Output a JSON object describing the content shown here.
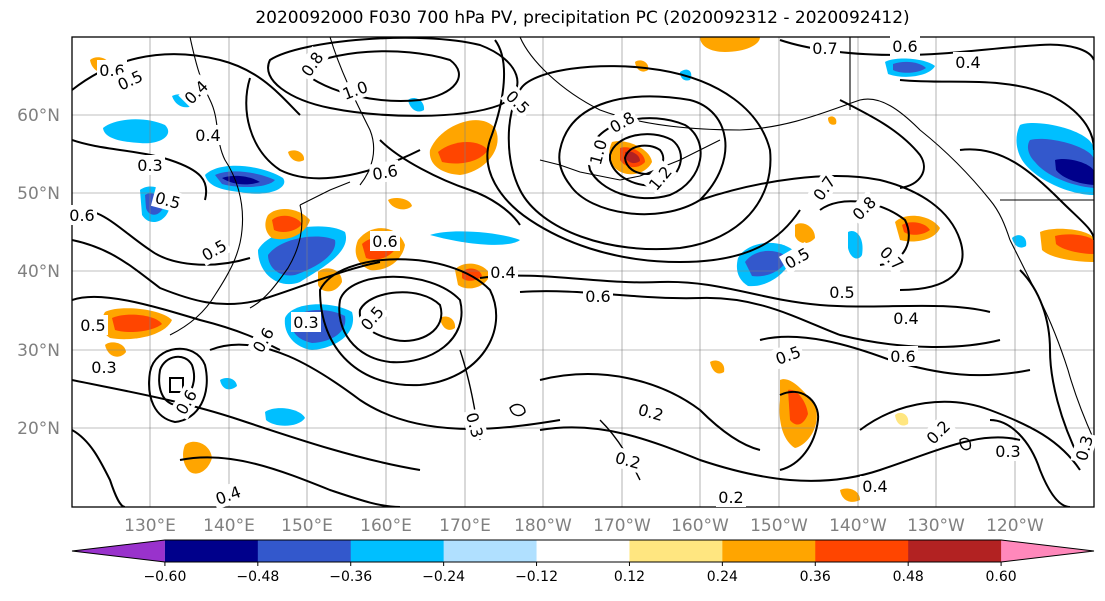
{
  "title": "2020092000 F030 700 hPa PV, precipitation PC (2020092312 - 2020092412)",
  "map": {
    "lat_labels": [
      "60°N",
      "50°N",
      "40°N",
      "30°N",
      "20°N"
    ],
    "lon_labels": [
      "130°E",
      "140°E",
      "150°E",
      "160°E",
      "170°E",
      "180°W",
      "170°W",
      "160°W",
      "150°W",
      "140°W",
      "130°W",
      "120°W"
    ],
    "contour_labels": [
      "0.6",
      "0.5",
      "0.4",
      "0.8",
      "1.0",
      "0.5",
      "0.8",
      "1.0",
      "1.2",
      "0.7",
      "0.6",
      "0.4",
      "0.3",
      "0.4",
      "0.6",
      "0.5",
      "0.6",
      "0.5",
      "0.6",
      "0.4",
      "0.7",
      "0.8",
      "0.5",
      "0.3",
      "0.5",
      "0.6",
      "0.5",
      "0.4",
      "0.6",
      "0.5",
      "0.3",
      "0.3",
      "0.2",
      "0.2",
      "0.2",
      "0.4",
      "0.3",
      "0.2",
      "0.4",
      "0.3",
      "0.6",
      "0.6",
      "0.7",
      "0.5"
    ]
  },
  "colorbar": {
    "tick_labels": [
      "−0.60",
      "−0.48",
      "−0.36",
      "−0.24",
      "−0.12",
      "0.12",
      "0.24",
      "0.36",
      "0.48",
      "0.60"
    ],
    "colors": [
      "#9932cc",
      "#00008b",
      "#3358cc",
      "#00bfff",
      "#b0e0ff",
      "#ffffff",
      "#ffe680",
      "#ffa500",
      "#ff4500",
      "#b22222",
      "#ff88bb"
    ]
  },
  "colors": {
    "contour": "#000000",
    "grid": "#808080",
    "coast": "#000000"
  }
}
